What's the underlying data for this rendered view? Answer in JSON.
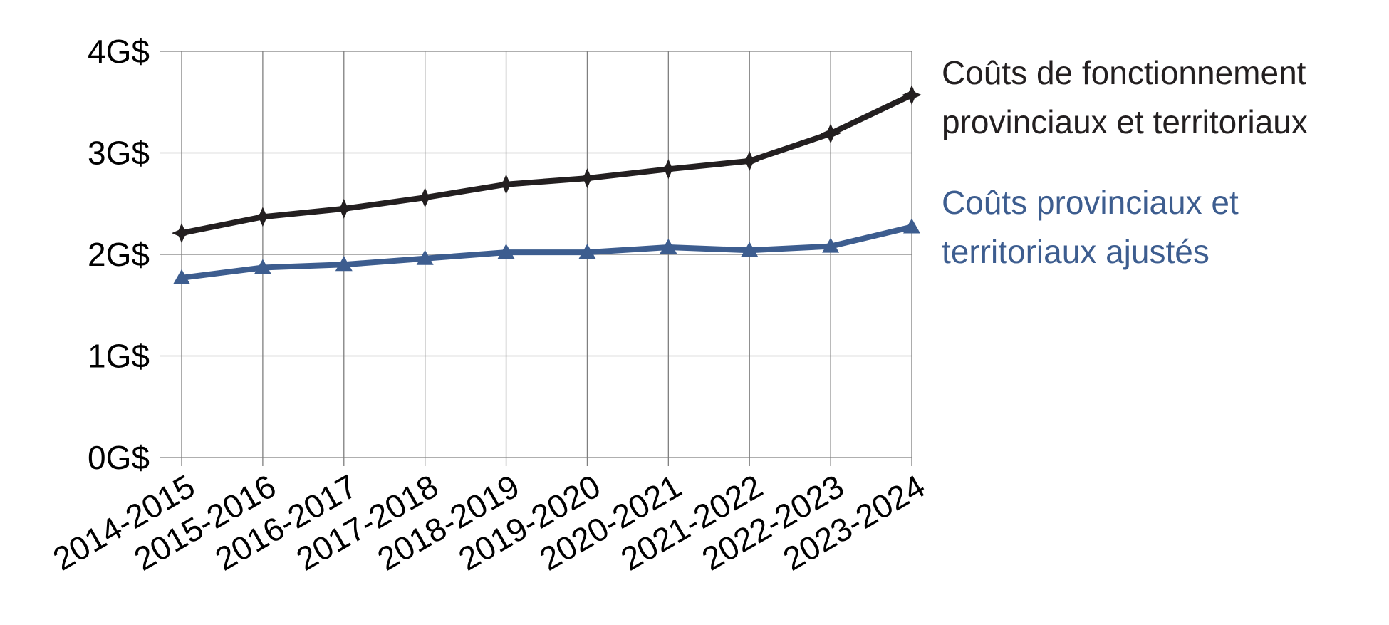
{
  "chart_data": {
    "type": "line",
    "categories": [
      "2014-2015",
      "2015-2016",
      "2016-2017",
      "2017-2018",
      "2018-2019",
      "2019-2020",
      "2020-2021",
      "2021-2022",
      "2022-2023",
      "2023-2024"
    ],
    "y_ticks": [
      "0G$",
      "1G$",
      "2G$",
      "3G$",
      "4G$"
    ],
    "ylim": [
      0,
      4
    ],
    "grid": true,
    "legend_position": "right",
    "series": [
      {
        "name": "Coûts de fonctionnement provinciaux et territoriaux",
        "name_lines": [
          "Coûts de fonctionnement",
          "provinciaux et territoriaux"
        ],
        "color": "#231f20",
        "marker": "star",
        "values": [
          2.21,
          2.37,
          2.45,
          2.56,
          2.69,
          2.75,
          2.84,
          2.92,
          3.19,
          3.57
        ]
      },
      {
        "name": "Coûts provinciaux et territoriaux ajustés",
        "name_lines": [
          "Coûts provinciaux et",
          "territoriaux ajustés"
        ],
        "color": "#3d5d8f",
        "marker": "triangle",
        "values": [
          1.77,
          1.87,
          1.9,
          1.96,
          2.02,
          2.02,
          2.07,
          2.04,
          2.08,
          2.27
        ]
      }
    ]
  }
}
